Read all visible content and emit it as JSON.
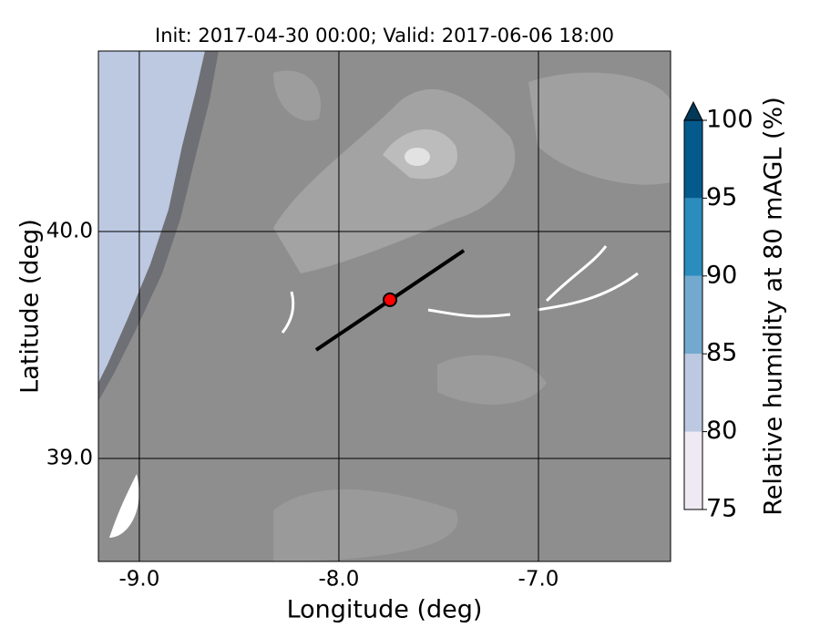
{
  "chart_data": {
    "type": "map",
    "title": "Init: 2017-04-30 00:00; Valid: 2017-06-06 18:00",
    "x_label": "Longitude (deg)",
    "y_label": "Latitude (deg)",
    "xlim": [
      -9.205,
      -6.338
    ],
    "ylim": [
      38.546,
      40.795
    ],
    "xticks": [
      {
        "value": -9,
        "label": "-9.0"
      },
      {
        "value": -8,
        "label": "-8.0"
      },
      {
        "value": -7,
        "label": "-7.0"
      }
    ],
    "yticks": [
      {
        "value": 39,
        "label": "39.0"
      },
      {
        "value": 40,
        "label": "40.0"
      }
    ],
    "grid": true,
    "transect": {
      "lon": [
        -8.114,
        -7.374
      ],
      "lat": [
        39.478,
        39.916
      ],
      "color": "#000000"
    },
    "point": {
      "lon": -7.744,
      "lat": 39.699,
      "color": "#ff0000"
    },
    "colorbar": {
      "label": "Relative humidity at 80 mAGL (%)",
      "ticks": [
        75,
        80,
        85,
        90,
        95,
        100
      ],
      "colors": [
        "#efe9f3",
        "#bdc8e1",
        "#74a9cf",
        "#2b8cbe",
        "#045a8d"
      ],
      "extend_color": "#023858"
    }
  }
}
